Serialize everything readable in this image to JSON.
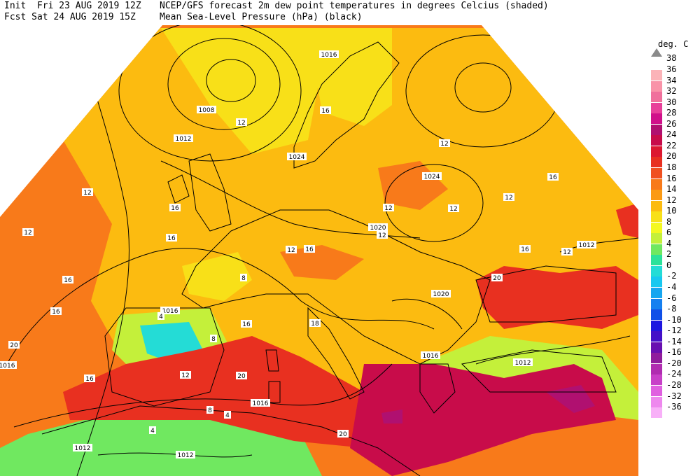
{
  "header": {
    "line1_left": "Init  Fri 23 AUG 2019 12Z",
    "line2_left": "Fcst Sat 24 AUG 2019 15Z",
    "line1_right": "NCEP/GFS forecast 2m dew point temperatures in degrees Celcius (shaded)",
    "line2_right": "Mean Sea-Level Pressure (hPa) (black)"
  },
  "legend": {
    "unit": "deg. C",
    "top_label": "38",
    "entries": [
      {
        "label": "36",
        "color": "#fbb3b8"
      },
      {
        "label": "34",
        "color": "#f993a8"
      },
      {
        "label": "32",
        "color": "#f0709c"
      },
      {
        "label": "30",
        "color": "#e8409a"
      },
      {
        "label": "28",
        "color": "#d0108a"
      },
      {
        "label": "26",
        "color": "#b01070"
      },
      {
        "label": "24",
        "color": "#c80c4a"
      },
      {
        "label": "22",
        "color": "#dc1830"
      },
      {
        "label": "20",
        "color": "#e83020"
      },
      {
        "label": "18",
        "color": "#f05020"
      },
      {
        "label": "16",
        "color": "#f87a1a"
      },
      {
        "label": "14",
        "color": "#fb9a14"
      },
      {
        "label": "12",
        "color": "#fcbb10"
      },
      {
        "label": "10",
        "color": "#f8e018"
      },
      {
        "label": "8",
        "color": "#f4f820"
      },
      {
        "label": "6",
        "color": "#c4f03a"
      },
      {
        "label": "4",
        "color": "#70e860"
      },
      {
        "label": "2",
        "color": "#2ce29a"
      },
      {
        "label": "0",
        "color": "#24dcd6"
      },
      {
        "label": "-2",
        "color": "#18c8f0"
      },
      {
        "label": "-4",
        "color": "#16a6f0"
      },
      {
        "label": "-6",
        "color": "#1680f0"
      },
      {
        "label": "-8",
        "color": "#1050e8"
      },
      {
        "label": "-10",
        "color": "#1e16e0"
      },
      {
        "label": "-12",
        "color": "#4410c8"
      },
      {
        "label": "-14",
        "color": "#6810b0"
      },
      {
        "label": "-16",
        "color": "#901c9c"
      },
      {
        "label": "-20",
        "color": "#b02cb0"
      },
      {
        "label": "-24",
        "color": "#c840c8"
      },
      {
        "label": "-28",
        "color": "#e060e0"
      },
      {
        "label": "-32",
        "color": "#ee88ee"
      },
      {
        "label": "-36",
        "color": "#f8b0f8"
      }
    ]
  },
  "isobar_labels": [
    "1008",
    "1012",
    "1024",
    "1024",
    "1012",
    "1016",
    "1020",
    "1016",
    "1016",
    "1012",
    "1012",
    "1016",
    "1012",
    "1016",
    "1020"
  ],
  "dewpoint_labels": [
    "12",
    "16",
    "12",
    "12",
    "12",
    "16",
    "12",
    "16",
    "12",
    "12",
    "16",
    "12",
    "16",
    "20",
    "18",
    "16",
    "20",
    "20",
    "8",
    "12",
    "4",
    "16",
    "8",
    "4",
    "20",
    "12",
    "4",
    "16",
    "16",
    "12",
    "8",
    "16"
  ],
  "map_colors": {
    "ocean_atlantic": "#f87a1a",
    "continent_base": "#fcbb10",
    "north_yellow": "#f8e018",
    "mediterranean": "#e83020",
    "east_med": "#c80c4a",
    "deep_purple": "#b01070",
    "iberia_green": "#c4f03a",
    "iberia_cyan": "#24dcd6",
    "sahara_green": "#70e860",
    "coast_line": "#000000"
  }
}
